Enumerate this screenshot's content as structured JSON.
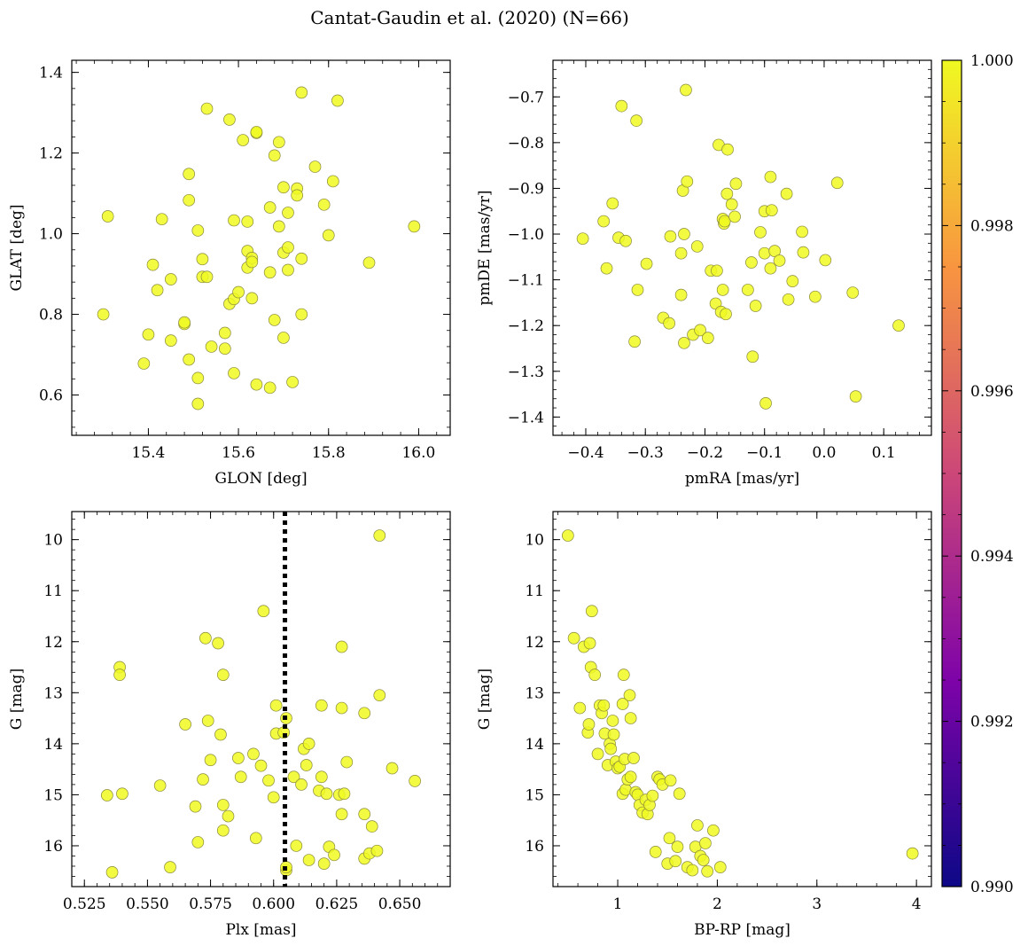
{
  "figure": {
    "title": "Cantat-Gaudin et al. (2020) (N=66)"
  },
  "style": {
    "point_color": "#f0f921",
    "point_edge": "#8a8a3a",
    "cmap": [
      "#0d0887",
      "#7e03a8",
      "#cc4778",
      "#f89540",
      "#f0f921"
    ],
    "vline_color": "#000000"
  },
  "colorbar": {
    "ticks": [
      "0.990",
      "0.992",
      "0.994",
      "0.996",
      "0.998",
      "1.000"
    ],
    "range": [
      0.99,
      1.0
    ]
  },
  "chart_data": [
    {
      "type": "scatter",
      "xlabel": "GLON [deg]",
      "ylabel": "GLAT [deg]",
      "xlim": [
        15.23,
        16.07
      ],
      "ylim": [
        0.5,
        1.43
      ],
      "xticks": [
        15.4,
        15.6,
        15.8,
        16.0
      ],
      "xticklabels": [
        "15.4",
        "15.6",
        "15.8",
        "16.0"
      ],
      "yticks": [
        0.6,
        0.8,
        1.0,
        1.2,
        1.4
      ],
      "yticklabels": [
        "0.6",
        "0.8",
        "1.0",
        "1.2",
        "1.4"
      ],
      "points": [
        [
          15.31,
          1.043
        ],
        [
          15.3,
          0.8
        ],
        [
          15.39,
          0.678
        ],
        [
          15.4,
          0.75
        ],
        [
          15.41,
          0.923
        ],
        [
          15.42,
          0.86
        ],
        [
          15.43,
          1.036
        ],
        [
          15.45,
          0.887
        ],
        [
          15.45,
          0.735
        ],
        [
          15.48,
          0.776
        ],
        [
          15.48,
          0.78
        ],
        [
          15.49,
          1.148
        ],
        [
          15.49,
          1.083
        ],
        [
          15.49,
          0.688
        ],
        [
          15.51,
          1.008
        ],
        [
          15.51,
          0.642
        ],
        [
          15.51,
          0.578
        ],
        [
          15.52,
          0.937
        ],
        [
          15.52,
          0.893
        ],
        [
          15.53,
          0.893
        ],
        [
          15.53,
          1.31
        ],
        [
          15.54,
          0.72
        ],
        [
          15.57,
          0.715
        ],
        [
          15.57,
          0.754
        ],
        [
          15.58,
          0.826
        ],
        [
          15.58,
          1.283
        ],
        [
          15.59,
          1.033
        ],
        [
          15.59,
          0.654
        ],
        [
          15.59,
          0.838
        ],
        [
          15.6,
          0.855
        ],
        [
          15.61,
          1.232
        ],
        [
          15.62,
          0.957
        ],
        [
          15.62,
          0.916
        ],
        [
          15.62,
          1.03
        ],
        [
          15.63,
          0.94
        ],
        [
          15.63,
          0.93
        ],
        [
          15.63,
          0.84
        ],
        [
          15.64,
          1.25
        ],
        [
          15.64,
          1.252
        ],
        [
          15.64,
          0.626
        ],
        [
          15.67,
          0.904
        ],
        [
          15.67,
          1.065
        ],
        [
          15.67,
          0.618
        ],
        [
          15.68,
          0.786
        ],
        [
          15.68,
          1.194
        ],
        [
          15.69,
          1.227
        ],
        [
          15.69,
          1.018
        ],
        [
          15.7,
          1.115
        ],
        [
          15.7,
          0.742
        ],
        [
          15.7,
          0.953
        ],
        [
          15.71,
          0.966
        ],
        [
          15.71,
          1.052
        ],
        [
          15.71,
          0.91
        ],
        [
          15.72,
          0.632
        ],
        [
          15.73,
          1.112
        ],
        [
          15.73,
          1.095
        ],
        [
          15.74,
          0.938
        ],
        [
          15.74,
          1.35
        ],
        [
          15.74,
          0.8
        ],
        [
          15.77,
          1.166
        ],
        [
          15.79,
          1.072
        ],
        [
          15.8,
          0.996
        ],
        [
          15.81,
          1.13
        ],
        [
          15.82,
          1.33
        ],
        [
          15.89,
          0.928
        ],
        [
          15.99,
          1.018
        ]
      ]
    },
    {
      "type": "scatter",
      "xlabel": "pmRA [mas/yr]",
      "ylabel": "pmDE [mas/yr]",
      "xlim": [
        -0.455,
        0.18
      ],
      "ylim": [
        -1.44,
        -0.62
      ],
      "xticks": [
        -0.4,
        -0.3,
        -0.2,
        -0.1,
        0.0,
        0.1
      ],
      "xticklabels": [
        "−0.4",
        "−0.3",
        "−0.2",
        "−0.1",
        "0.0",
        "0.1"
      ],
      "yticks": [
        -1.4,
        -1.3,
        -1.2,
        -1.1,
        -1.0,
        -0.9,
        -0.8,
        -0.7
      ],
      "yticklabels": [
        "−1.4",
        "−1.3",
        "−1.2",
        "−1.1",
        "−1.0",
        "−0.9",
        "−0.8",
        "−0.7"
      ],
      "points": [
        [
          -0.405,
          -1.01
        ],
        [
          -0.37,
          -0.972
        ],
        [
          -0.365,
          -1.075
        ],
        [
          -0.355,
          -0.933
        ],
        [
          -0.345,
          -1.008
        ],
        [
          -0.34,
          -0.72
        ],
        [
          -0.333,
          -1.015
        ],
        [
          -0.318,
          -1.235
        ],
        [
          -0.315,
          -0.752
        ],
        [
          -0.313,
          -1.122
        ],
        [
          -0.298,
          -1.065
        ],
        [
          -0.27,
          -1.183
        ],
        [
          -0.26,
          -1.195
        ],
        [
          -0.258,
          -1.005
        ],
        [
          -0.24,
          -1.042
        ],
        [
          -0.24,
          -1.133
        ],
        [
          -0.237,
          -0.905
        ],
        [
          -0.235,
          -1.0
        ],
        [
          -0.235,
          -1.238
        ],
        [
          -0.232,
          -0.685
        ],
        [
          -0.23,
          -0.885
        ],
        [
          -0.22,
          -1.22
        ],
        [
          -0.213,
          -1.027
        ],
        [
          -0.208,
          -1.21
        ],
        [
          -0.195,
          -1.227
        ],
        [
          -0.19,
          -1.08
        ],
        [
          -0.182,
          -1.152
        ],
        [
          -0.18,
          -1.08
        ],
        [
          -0.177,
          -0.805
        ],
        [
          -0.173,
          -1.17
        ],
        [
          -0.17,
          -1.122
        ],
        [
          -0.17,
          -0.967
        ],
        [
          -0.168,
          -0.977
        ],
        [
          -0.167,
          -0.972
        ],
        [
          -0.165,
          -1.175
        ],
        [
          -0.163,
          -0.912
        ],
        [
          -0.162,
          -0.815
        ],
        [
          -0.155,
          -0.935
        ],
        [
          -0.15,
          -0.962
        ],
        [
          -0.148,
          -0.89
        ],
        [
          -0.128,
          -1.122
        ],
        [
          -0.122,
          -1.062
        ],
        [
          -0.12,
          -1.268
        ],
        [
          -0.115,
          -1.157
        ],
        [
          -0.107,
          -0.996
        ],
        [
          -0.1,
          -0.95
        ],
        [
          -0.1,
          -1.042
        ],
        [
          -0.098,
          -1.37
        ],
        [
          -0.09,
          -1.075
        ],
        [
          -0.09,
          -0.875
        ],
        [
          -0.088,
          -0.948
        ],
        [
          -0.083,
          -1.037
        ],
        [
          -0.075,
          -1.058
        ],
        [
          -0.063,
          -0.912
        ],
        [
          -0.06,
          -1.143
        ],
        [
          -0.053,
          -1.103
        ],
        [
          -0.037,
          -0.995
        ],
        [
          -0.035,
          -1.04
        ],
        [
          -0.015,
          -1.137
        ],
        [
          0.002,
          -1.057
        ],
        [
          0.022,
          -0.888
        ],
        [
          0.048,
          -1.128
        ],
        [
          0.053,
          -1.355
        ],
        [
          0.125,
          -1.2
        ]
      ]
    },
    {
      "type": "scatter",
      "xlabel": "Plx [mas]",
      "ylabel": "G [mag]",
      "xlim": [
        0.52,
        0.67
      ],
      "ylim": [
        16.8,
        9.45
      ],
      "xticks": [
        0.525,
        0.55,
        0.575,
        0.6,
        0.625,
        0.65
      ],
      "xticklabels": [
        "0.525",
        "0.550",
        "0.575",
        "0.600",
        "0.625",
        "0.650"
      ],
      "yticks": [
        10,
        11,
        12,
        13,
        14,
        15,
        16
      ],
      "yticklabels": [
        "10",
        "11",
        "12",
        "13",
        "14",
        "15",
        "16"
      ],
      "vline": 0.6045,
      "points": [
        [
          0.534,
          15.01
        ],
        [
          0.536,
          16.52
        ],
        [
          0.539,
          12.5
        ],
        [
          0.539,
          12.65
        ],
        [
          0.54,
          14.98
        ],
        [
          0.555,
          14.82
        ],
        [
          0.559,
          16.42
        ],
        [
          0.565,
          13.62
        ],
        [
          0.569,
          15.23
        ],
        [
          0.57,
          15.93
        ],
        [
          0.572,
          14.7
        ],
        [
          0.573,
          11.93
        ],
        [
          0.574,
          13.55
        ],
        [
          0.575,
          14.32
        ],
        [
          0.578,
          12.03
        ],
        [
          0.579,
          13.82
        ],
        [
          0.58,
          12.65
        ],
        [
          0.58,
          15.7
        ],
        [
          0.58,
          15.2
        ],
        [
          0.582,
          15.42
        ],
        [
          0.586,
          14.28
        ],
        [
          0.587,
          14.65
        ],
        [
          0.592,
          14.2
        ],
        [
          0.593,
          15.85
        ],
        [
          0.595,
          14.43
        ],
        [
          0.596,
          11.4
        ],
        [
          0.598,
          14.72
        ],
        [
          0.6,
          15.05
        ],
        [
          0.601,
          13.25
        ],
        [
          0.601,
          13.8
        ],
        [
          0.604,
          13.78
        ],
        [
          0.605,
          13.5
        ],
        [
          0.605,
          16.48
        ],
        [
          0.605,
          16.42
        ],
        [
          0.608,
          14.65
        ],
        [
          0.609,
          16.0
        ],
        [
          0.611,
          14.8
        ],
        [
          0.612,
          14.1
        ],
        [
          0.613,
          14.42
        ],
        [
          0.614,
          14.0
        ],
        [
          0.614,
          16.28
        ],
        [
          0.618,
          14.92
        ],
        [
          0.619,
          14.65
        ],
        [
          0.619,
          13.25
        ],
        [
          0.62,
          16.35
        ],
        [
          0.621,
          14.98
        ],
        [
          0.622,
          16.02
        ],
        [
          0.624,
          16.18
        ],
        [
          0.626,
          15.0
        ],
        [
          0.627,
          15.38
        ],
        [
          0.627,
          13.3
        ],
        [
          0.627,
          12.1
        ],
        [
          0.628,
          14.98
        ],
        [
          0.629,
          14.36
        ],
        [
          0.636,
          15.38
        ],
        [
          0.636,
          16.25
        ],
        [
          0.636,
          13.4
        ],
        [
          0.638,
          16.15
        ],
        [
          0.639,
          15.62
        ],
        [
          0.641,
          16.1
        ],
        [
          0.642,
          9.92
        ],
        [
          0.642,
          13.05
        ],
        [
          0.647,
          14.48
        ],
        [
          0.656,
          14.73
        ]
      ]
    },
    {
      "type": "scatter",
      "xlabel": "BP-RP [mag]",
      "ylabel": "G [mag]",
      "xlim": [
        0.35,
        4.15
      ],
      "ylim": [
        16.8,
        9.45
      ],
      "xticks": [
        1,
        2,
        3,
        4
      ],
      "xticklabels": [
        "1",
        "2",
        "3",
        "4"
      ],
      "yticks": [
        10,
        11,
        12,
        13,
        14,
        15,
        16
      ],
      "yticklabels": [
        "10",
        "11",
        "12",
        "13",
        "14",
        "15",
        "16"
      ],
      "points": [
        [
          0.5,
          9.92
        ],
        [
          0.56,
          11.93
        ],
        [
          0.62,
          13.3
        ],
        [
          0.66,
          12.1
        ],
        [
          0.7,
          13.78
        ],
        [
          0.71,
          13.62
        ],
        [
          0.72,
          12.03
        ],
        [
          0.73,
          12.5
        ],
        [
          0.74,
          11.4
        ],
        [
          0.77,
          12.65
        ],
        [
          0.8,
          14.2
        ],
        [
          0.82,
          13.25
        ],
        [
          0.84,
          13.4
        ],
        [
          0.86,
          13.25
        ],
        [
          0.87,
          13.8
        ],
        [
          0.9,
          14.42
        ],
        [
          0.92,
          14.0
        ],
        [
          0.93,
          14.1
        ],
        [
          0.95,
          13.55
        ],
        [
          0.96,
          13.82
        ],
        [
          0.98,
          14.35
        ],
        [
          1.0,
          14.48
        ],
        [
          1.02,
          14.45
        ],
        [
          1.05,
          13.22
        ],
        [
          1.05,
          14.98
        ],
        [
          1.06,
          12.65
        ],
        [
          1.07,
          14.3
        ],
        [
          1.08,
          14.9
        ],
        [
          1.1,
          14.7
        ],
        [
          1.12,
          13.05
        ],
        [
          1.13,
          14.65
        ],
        [
          1.13,
          13.5
        ],
        [
          1.16,
          14.28
        ],
        [
          1.18,
          14.95
        ],
        [
          1.2,
          15.0
        ],
        [
          1.22,
          15.2
        ],
        [
          1.25,
          15.35
        ],
        [
          1.28,
          15.1
        ],
        [
          1.3,
          15.38
        ],
        [
          1.32,
          15.2
        ],
        [
          1.35,
          15.02
        ],
        [
          1.38,
          16.12
        ],
        [
          1.4,
          14.65
        ],
        [
          1.42,
          14.7
        ],
        [
          1.45,
          14.8
        ],
        [
          1.5,
          16.35
        ],
        [
          1.52,
          15.85
        ],
        [
          1.53,
          14.72
        ],
        [
          1.58,
          16.3
        ],
        [
          1.6,
          16.02
        ],
        [
          1.62,
          14.98
        ],
        [
          1.7,
          16.42
        ],
        [
          1.75,
          16.48
        ],
        [
          1.78,
          16.02
        ],
        [
          1.8,
          15.6
        ],
        [
          1.83,
          16.2
        ],
        [
          1.86,
          16.28
        ],
        [
          1.88,
          15.95
        ],
        [
          1.9,
          16.5
        ],
        [
          1.96,
          15.7
        ],
        [
          2.03,
          16.42
        ],
        [
          3.96,
          16.15
        ]
      ]
    }
  ]
}
